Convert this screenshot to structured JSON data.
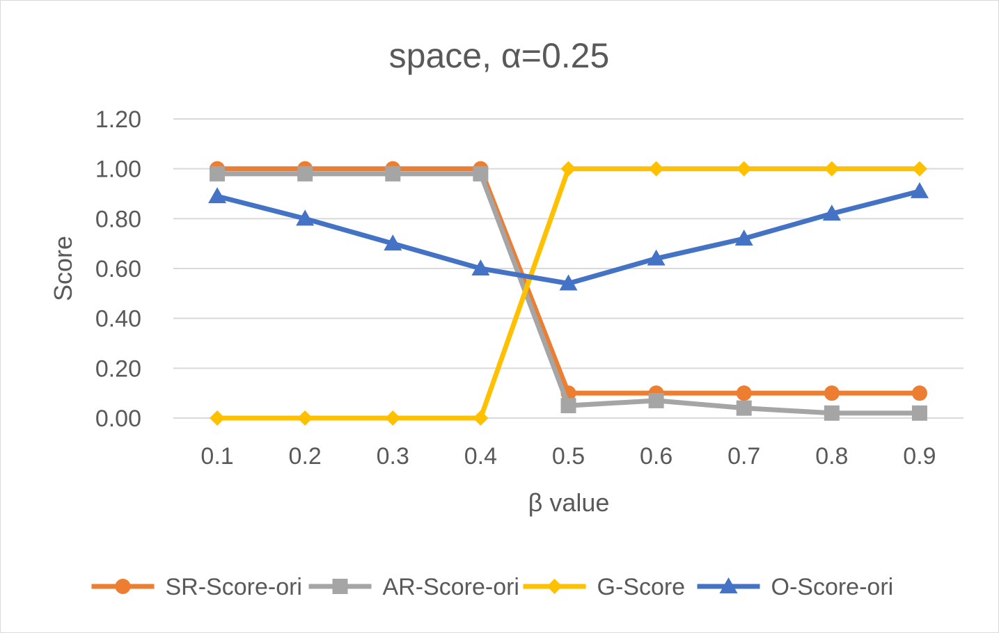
{
  "chart_data": {
    "type": "line",
    "title": "space, α=0.25",
    "xlabel": "β value",
    "ylabel": "Score",
    "categories": [
      "0.1",
      "0.2",
      "0.3",
      "0.4",
      "0.5",
      "0.6",
      "0.7",
      "0.8",
      "0.9"
    ],
    "ylim": [
      0,
      1.2
    ],
    "yticks": [
      "0.00",
      "0.20",
      "0.40",
      "0.60",
      "0.80",
      "1.00",
      "1.20"
    ],
    "grid": true,
    "legend_position": "bottom",
    "series": [
      {
        "name": "SR-Score-ori",
        "color": "#ed7d31",
        "marker": "circle",
        "values": [
          1.0,
          1.0,
          1.0,
          1.0,
          0.1,
          0.1,
          0.1,
          0.1,
          0.1
        ]
      },
      {
        "name": "AR-Score-ori",
        "color": "#a5a5a5",
        "marker": "square",
        "values": [
          0.98,
          0.98,
          0.98,
          0.98,
          0.05,
          0.07,
          0.04,
          0.02,
          0.02
        ]
      },
      {
        "name": "G-Score",
        "color": "#ffc000",
        "marker": "diamond",
        "values": [
          0.0,
          0.0,
          0.0,
          0.0,
          1.0,
          1.0,
          1.0,
          1.0,
          1.0
        ]
      },
      {
        "name": "O-Score-ori",
        "color": "#4472c4",
        "marker": "triangle",
        "values": [
          0.89,
          0.8,
          0.7,
          0.6,
          0.54,
          0.64,
          0.72,
          0.82,
          0.91
        ]
      }
    ]
  }
}
